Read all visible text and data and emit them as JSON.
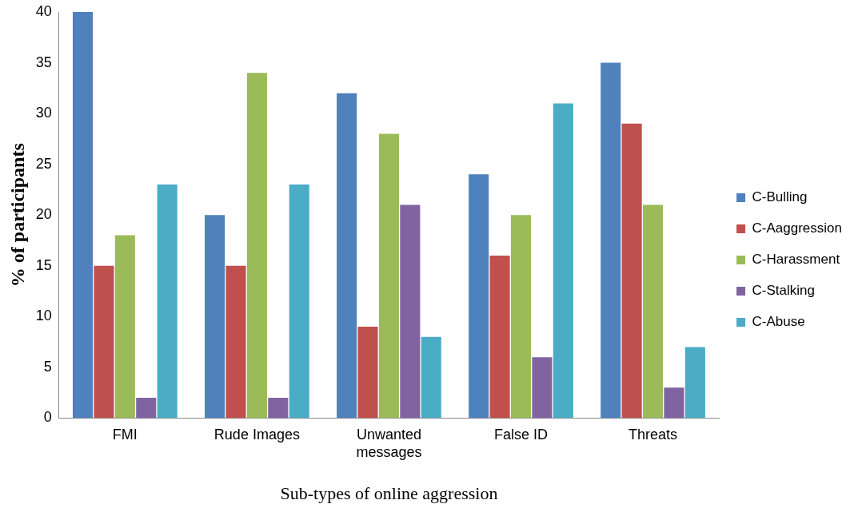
{
  "chart_data": {
    "type": "bar",
    "xlabel": "Sub-types of online aggression",
    "ylabel": "% of participants",
    "categories": [
      "FMI",
      "Rude Images",
      "Unwanted messages",
      "False ID",
      "Threats"
    ],
    "series": [
      {
        "name": "C-Bulling",
        "color": "#4f81bd",
        "values": [
          40,
          20,
          32,
          24,
          35
        ]
      },
      {
        "name": "C-Aaggression",
        "color": "#c0504d",
        "values": [
          15,
          15,
          9,
          16,
          29
        ]
      },
      {
        "name": "C-Harassment",
        "color": "#9bbb59",
        "values": [
          18,
          34,
          28,
          20,
          21
        ]
      },
      {
        "name": "C-Stalking",
        "color": "#8064a2",
        "values": [
          2,
          2,
          21,
          6,
          3
        ]
      },
      {
        "name": "C-Abuse",
        "color": "#4bacc6",
        "values": [
          23,
          23,
          8,
          31,
          7
        ]
      }
    ],
    "ylim": [
      0,
      40
    ],
    "yticks": [
      0,
      5,
      10,
      15,
      20,
      25,
      30,
      35,
      40
    ],
    "grid": false,
    "legend": "right"
  }
}
